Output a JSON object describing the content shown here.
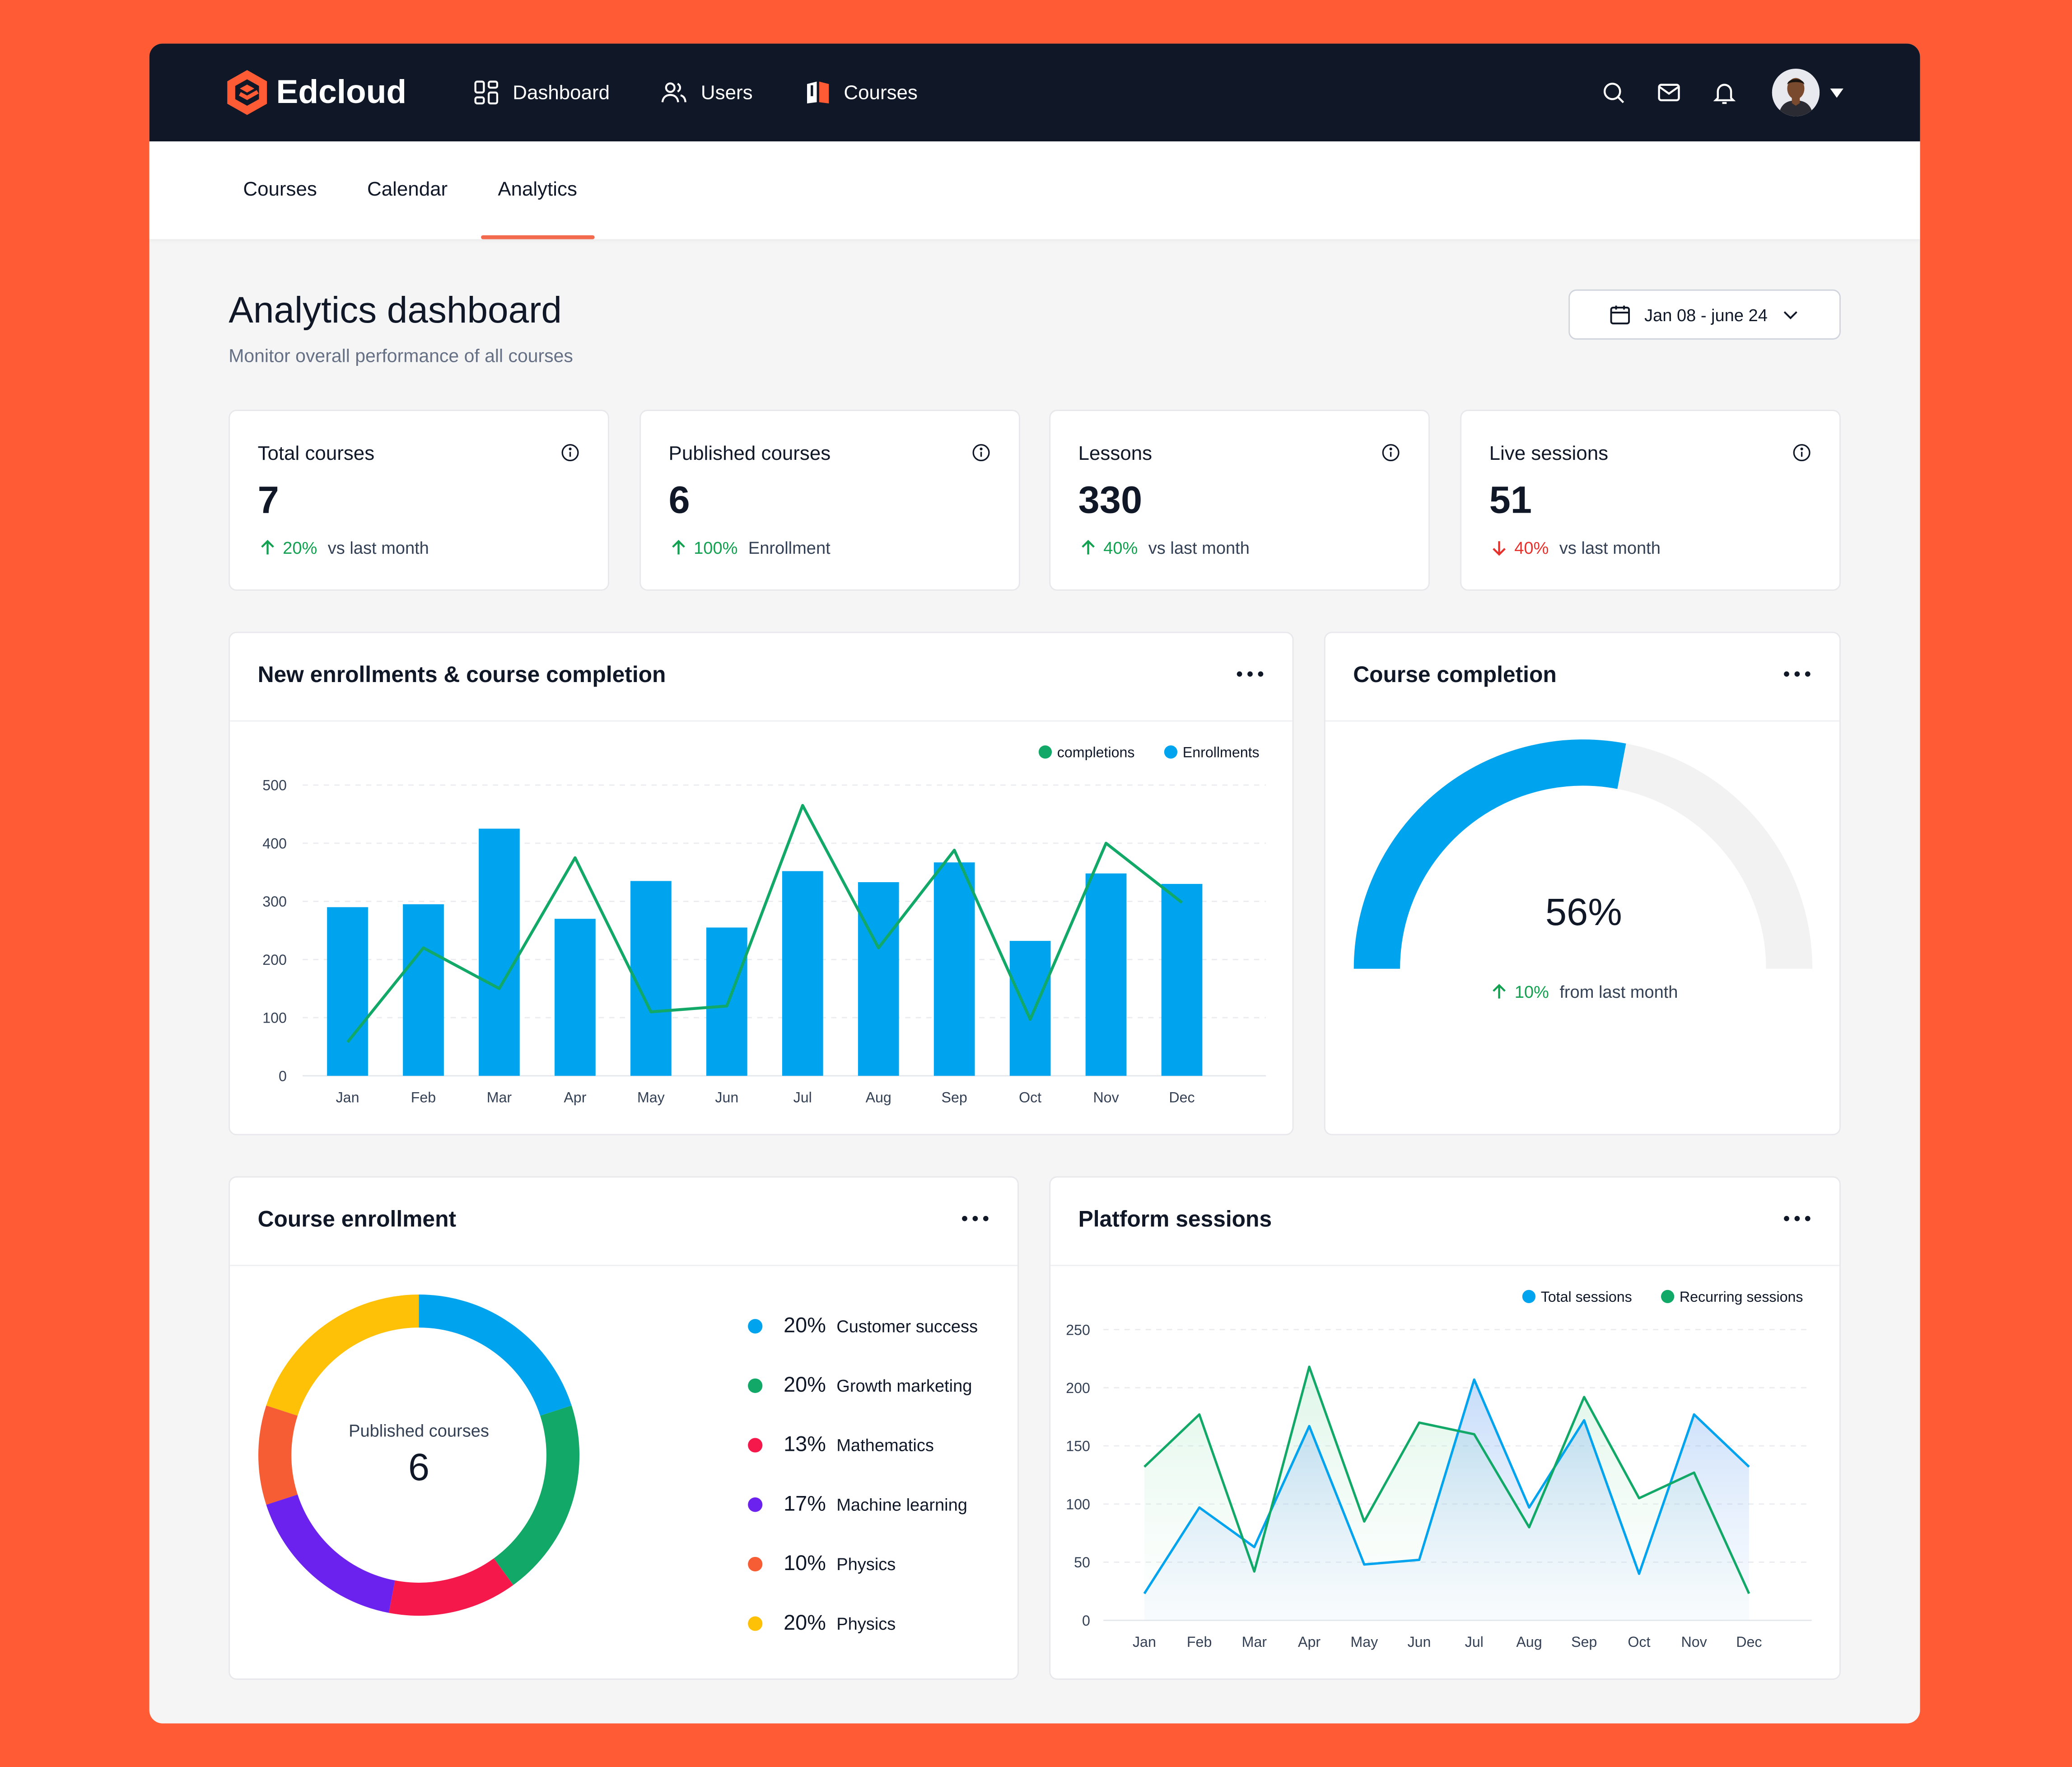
{
  "brand": {
    "name": "Edcloud",
    "color": "#FF5C35"
  },
  "nav": [
    {
      "label": "Dashboard",
      "icon": "dashboard-grid-icon"
    },
    {
      "label": "Users",
      "icon": "users-icon"
    },
    {
      "label": "Courses",
      "icon": "book-icon"
    }
  ],
  "header_icons": [
    "search-icon",
    "mail-icon",
    "bell-icon"
  ],
  "subnav": {
    "tabs": [
      {
        "label": "Courses"
      },
      {
        "label": "Calendar"
      },
      {
        "label": "Analytics",
        "active": true
      }
    ]
  },
  "page": {
    "title": "Analytics dashboard",
    "subtitle": "Monitor overall performance of all courses",
    "date_range": "Jan 08 - june 24"
  },
  "stats": [
    {
      "label": "Total courses",
      "value": "7",
      "change": "20%",
      "direction": "up",
      "note": "vs last month"
    },
    {
      "label": "Published courses",
      "value": "6",
      "change": "100%",
      "direction": "up",
      "note": "Enrollment"
    },
    {
      "label": "Lessons",
      "value": "330",
      "change": "40%",
      "direction": "up",
      "note": "vs last month"
    },
    {
      "label": "Live sessions",
      "value": "51",
      "change": "40%",
      "direction": "down",
      "note": "vs last month"
    }
  ],
  "colors": {
    "blue": "#00A3EE",
    "green": "#12A867",
    "up": "#12A150",
    "down": "#E5322D",
    "accent": "#F26B4E"
  },
  "enroll_card": {
    "title": "New enrollments & course completion"
  },
  "completion_card": {
    "title": "Course completion",
    "value": "56%",
    "fraction": 0.56,
    "change": "10%",
    "note": "from last month"
  },
  "enrollment_card": {
    "title": "Course enrollment",
    "center_label": "Published courses",
    "center_value": "6",
    "legend": [
      {
        "pct": "20%",
        "label": "Customer success",
        "color": "#00A3EE"
      },
      {
        "pct": "20%",
        "label": "Growth marketing",
        "color": "#12A867"
      },
      {
        "pct": "13%",
        "label": "Mathematics",
        "color": "#F5184A"
      },
      {
        "pct": "17%",
        "label": "Machine learning",
        "color": "#6B22EE"
      },
      {
        "pct": "10%",
        "label": "Physics",
        "color": "#F75D34"
      },
      {
        "pct": "20%",
        "label": "Physics",
        "color": "#FFC107"
      }
    ]
  },
  "sessions_card": {
    "title": "Platform sessions"
  },
  "chart_data": [
    {
      "type": "bar",
      "title": "New enrollments & course completion",
      "categories": [
        "Jan",
        "Feb",
        "Mar",
        "Apr",
        "May",
        "Jun",
        "Jul",
        "Aug",
        "Sep",
        "Oct",
        "Nov",
        "Dec"
      ],
      "series": [
        {
          "name": "Enrollments",
          "kind": "bar",
          "color": "#00A3EE",
          "values": [
            290,
            295,
            425,
            270,
            335,
            255,
            352,
            333,
            367,
            232,
            348,
            330
          ]
        },
        {
          "name": "completions",
          "kind": "line",
          "color": "#12A867",
          "values": [
            58,
            220,
            150,
            375,
            110,
            120,
            465,
            220,
            388,
            97,
            400,
            298
          ]
        }
      ],
      "legend_order": [
        "completions",
        "Enrollments"
      ],
      "yticks": [
        0,
        100,
        200,
        300,
        400,
        500
      ],
      "ylim": [
        0,
        500
      ],
      "legend": "top-right"
    },
    {
      "type": "pie",
      "title": "Course enrollment",
      "categories": [
        "Customer success",
        "Growth marketing",
        "Mathematics",
        "Machine learning",
        "Physics",
        "Physics"
      ],
      "values": [
        20,
        20,
        13,
        17,
        10,
        20
      ]
    },
    {
      "type": "area",
      "title": "Platform sessions",
      "categories": [
        "Jan",
        "Feb",
        "Mar",
        "Apr",
        "May",
        "Jun",
        "Jul",
        "Aug",
        "Sep",
        "Oct",
        "Nov",
        "Dec"
      ],
      "series": [
        {
          "name": "Total sessions",
          "color": "#00A3EE",
          "values": [
            23,
            97,
            63,
            167,
            48,
            52,
            207,
            97,
            172,
            40,
            177,
            132
          ]
        },
        {
          "name": "Recurring sessions",
          "color": "#12A867",
          "values": [
            132,
            177,
            42,
            218,
            85,
            170,
            160,
            80,
            192,
            105,
            127,
            23
          ]
        }
      ],
      "yticks": [
        0,
        50,
        100,
        150,
        200,
        250
      ],
      "ylim": [
        0,
        250
      ],
      "legend": "top-right"
    }
  ]
}
